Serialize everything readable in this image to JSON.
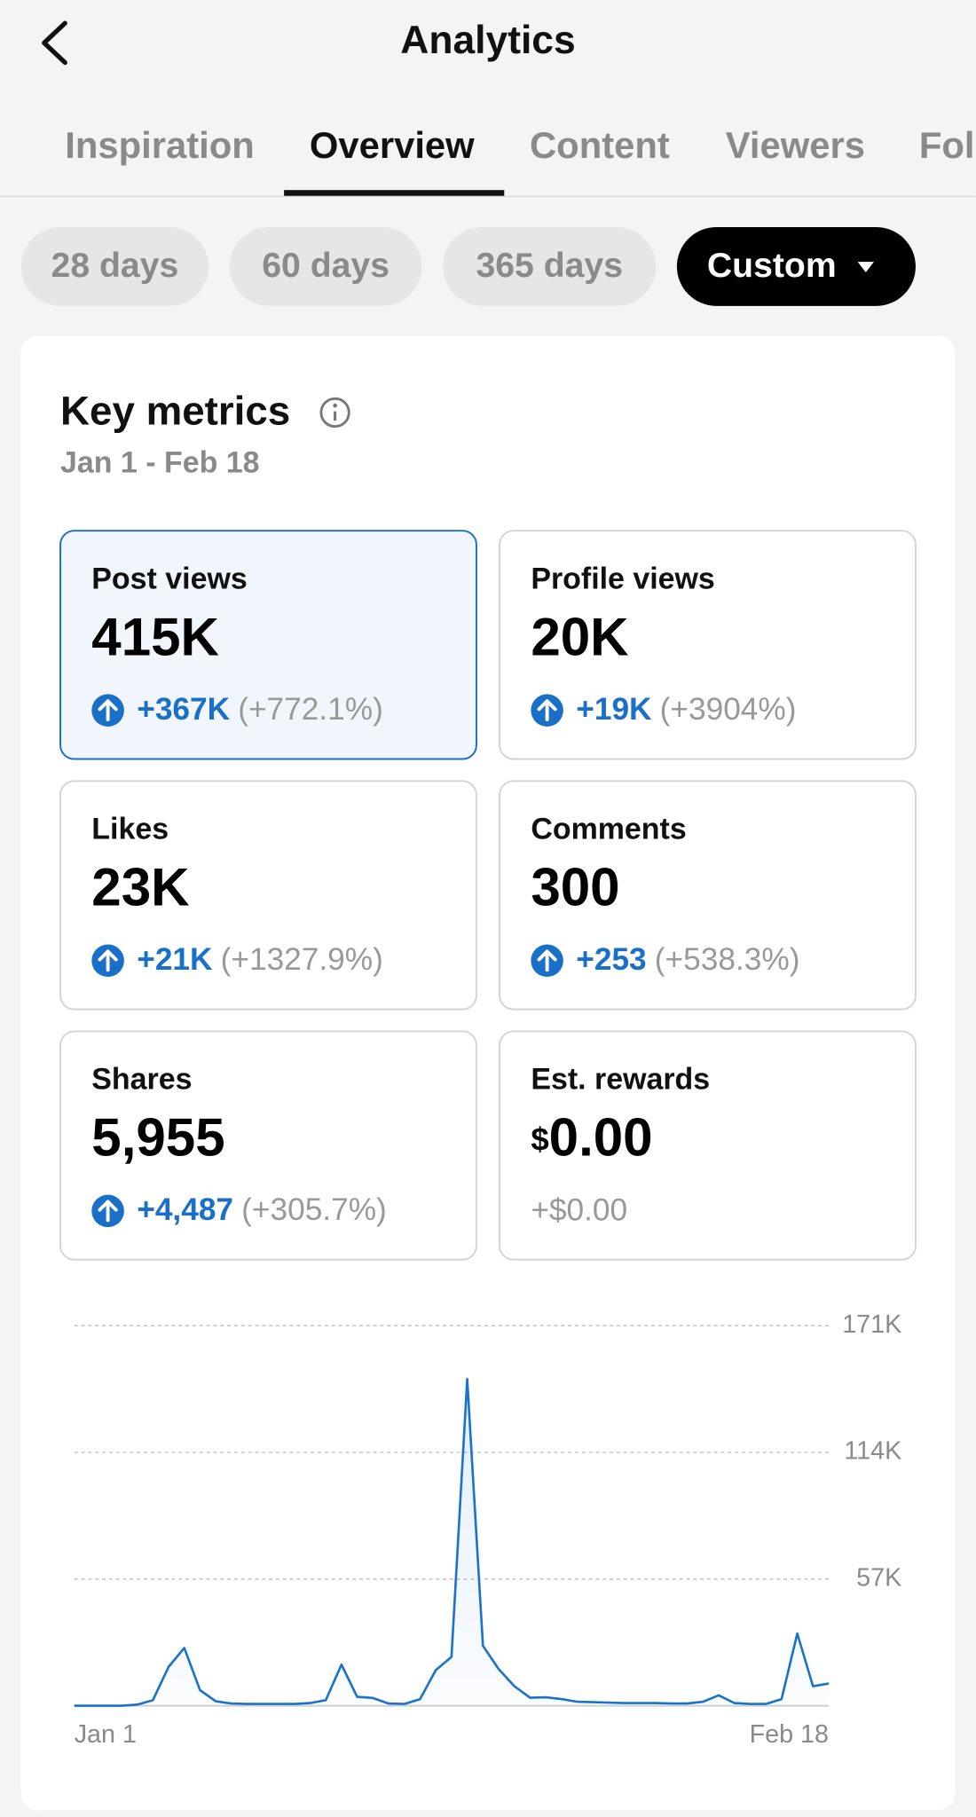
{
  "header": {
    "title": "Analytics"
  },
  "tabs": [
    {
      "label": "Inspiration"
    },
    {
      "label": "Overview",
      "selected": true
    },
    {
      "label": "Content"
    },
    {
      "label": "Viewers"
    },
    {
      "label": "Fol"
    }
  ],
  "filters": [
    {
      "label": "28 days"
    },
    {
      "label": "60 days"
    },
    {
      "label": "365 days"
    },
    {
      "label": "Custom",
      "selected": true
    }
  ],
  "card": {
    "title": "Key metrics",
    "date_range": "Jan 1 - Feb 18",
    "metrics": [
      {
        "label": "Post views",
        "value": "415K",
        "change": "+367K",
        "change_pct": "(+772.1%)",
        "selected": true
      },
      {
        "label": "Profile views",
        "value": "20K",
        "change": "+19K",
        "change_pct": "(+3904%)"
      },
      {
        "label": "Likes",
        "value": "23K",
        "change": "+21K",
        "change_pct": "(+1327.9%)"
      },
      {
        "label": "Comments",
        "value": "300",
        "change": "+253",
        "change_pct": "(+538.3%)"
      },
      {
        "label": "Shares",
        "value": "5,955",
        "change": "+4,487",
        "change_pct": "(+305.7%)"
      },
      {
        "label": "Est. rewards",
        "currency": "$",
        "value": "0.00",
        "change_plain": "+$0.00"
      }
    ]
  },
  "chart_data": {
    "type": "line",
    "color": "#1a73c8",
    "grid": true,
    "categories": [
      "Jan 1",
      null,
      null,
      null,
      null,
      null,
      null,
      null,
      null,
      null,
      null,
      null,
      null,
      null,
      null,
      null,
      null,
      null,
      null,
      null,
      null,
      null,
      null,
      null,
      null,
      null,
      null,
      null,
      null,
      null,
      null,
      null,
      null,
      null,
      null,
      null,
      null,
      null,
      null,
      null,
      null,
      null,
      null,
      null,
      null,
      null,
      null,
      null,
      "Feb 18"
    ],
    "values": [
      0,
      0,
      0,
      0,
      500,
      2500,
      17500,
      26000,
      7000,
      2000,
      1000,
      800,
      800,
      800,
      800,
      1200,
      2500,
      18500,
      4000,
      3500,
      1000,
      800,
      3000,
      16000,
      22000,
      147000,
      27000,
      16500,
      8800,
      3600,
      3800,
      3000,
      1800,
      1600,
      1400,
      1200,
      1200,
      1200,
      1000,
      1000,
      1800,
      4700,
      1200,
      800,
      800,
      3000,
      32500,
      8800,
      10000
    ],
    "ylim": [
      0,
      171000
    ],
    "yticks": [
      {
        "value": 57000,
        "label": "57K"
      },
      {
        "value": 114000,
        "label": "114K"
      },
      {
        "value": 171000,
        "label": "171K"
      }
    ]
  }
}
